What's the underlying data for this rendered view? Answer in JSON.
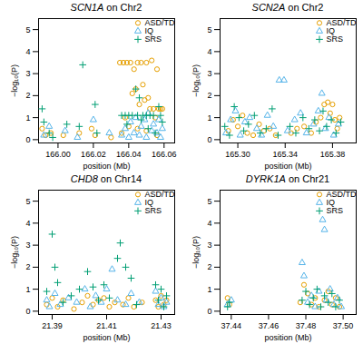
{
  "chart_data": [
    {
      "type": "scatter",
      "title": "SCN1A on Chr2",
      "x_label": "position (Mb)",
      "y_label": "−log₁₀(P)",
      "xlim": [
        165.989,
        166.066
      ],
      "xticks": [
        {
          "value": 166,
          "label": "166.00"
        },
        166.02,
        166.04,
        166.06
      ],
      "ylim": [
        -0.15,
        5.5
      ],
      "yticks": [
        0,
        1,
        2,
        3,
        4,
        5
      ],
      "legend": "top-right",
      "series": [
        {
          "name": "ASD/TD",
          "color": "#E69F00",
          "marker": "circle",
          "x": [
            165.991,
            165.993,
            165.996,
            166.003,
            166.012,
            166.019,
            166.021,
            166.03,
            166.035,
            166.037,
            166.039,
            166.041,
            166.043,
            166.045,
            166.047,
            166.05,
            166.053,
            166.056,
            166.038,
            166.04,
            166.042,
            166.044,
            166.046,
            166.048,
            166.049,
            166.051,
            166.052,
            166.054,
            166.055,
            166.057,
            166.058,
            166.059,
            166.036,
            166.045,
            166.05,
            166.056
          ],
          "values": [
            0.5,
            0.2,
            0.3,
            0.2,
            0.3,
            0.5,
            0.2,
            0.1,
            3.5,
            3.5,
            3.5,
            3.5,
            3.2,
            3.5,
            3.5,
            3.5,
            3.6,
            3.2,
            1.0,
            0.6,
            2.1,
            2.3,
            1.6,
            2.5,
            1.8,
            1.9,
            1.4,
            1.4,
            1.0,
            1.4,
            1.4,
            1.4,
            0.3,
            0.5,
            0.4,
            0.2
          ]
        },
        {
          "name": "IQ",
          "color": "#56B4E9",
          "marker": "triangle",
          "x": [
            165.992,
            165.995,
            166.004,
            166.011,
            166.02,
            166.029,
            166.036,
            166.038,
            166.04,
            166.041,
            166.043,
            166.044,
            166.046,
            166.047,
            166.049,
            166.05,
            166.051,
            166.053,
            166.054,
            166.056,
            166.057,
            166.058,
            166.059
          ],
          "values": [
            0.2,
            0.6,
            0.4,
            0.1,
            0.9,
            0.3,
            0.2,
            0.5,
            0.1,
            0.8,
            0.3,
            1.0,
            0.2,
            0.6,
            0.9,
            0.1,
            1.2,
            0.4,
            0.7,
            0.3,
            0.9,
            0.1,
            0.5
          ]
        },
        {
          "name": "SRS",
          "color": "#009E73",
          "marker": "plus",
          "x": [
            165.991,
            165.992,
            165.995,
            165.997,
            166.005,
            166.014,
            166.012,
            166.021,
            166.022,
            166.036,
            166.038,
            166.039,
            166.04,
            166.042,
            166.044,
            166.045,
            166.046,
            166.047,
            166.048,
            166.05,
            166.051,
            166.052,
            166.054,
            166.055,
            166.057,
            166.058,
            166.059
          ],
          "values": [
            1.4,
            0.8,
            0.3,
            0.1,
            0.7,
            3.4,
            0.6,
            1.6,
            0.3,
            1.1,
            1.1,
            0.7,
            1.1,
            1.1,
            2.3,
            1.1,
            1.9,
            0.9,
            1.1,
            1.1,
            0.5,
            1.1,
            1.1,
            0.3,
            1.5,
            1.1,
            0.8
          ]
        }
      ]
    },
    {
      "type": "scatter",
      "title": "SCN2A on Chr2",
      "x_label": "position (Mb)",
      "y_label": "−log₁₀(P)",
      "xlim": [
        165.285,
        165.4
      ],
      "xticks": [
        {
          "value": 165.3,
          "label": "165.30"
        },
        165.34,
        165.38
      ],
      "ylim": [
        -0.15,
        5.5
      ],
      "yticks": [
        0,
        1,
        2,
        3,
        4,
        5
      ],
      "legend": "top-right",
      "series": [
        {
          "name": "ASD/TD",
          "color": "#E69F00",
          "marker": "circle",
          "x": [
            165.292,
            165.296,
            165.3,
            165.304,
            165.308,
            165.313,
            165.318,
            165.322,
            165.327,
            165.332,
            165.345,
            165.35,
            165.356,
            165.362,
            165.366,
            165.37,
            165.373,
            165.376,
            165.378,
            165.38,
            165.382,
            165.384,
            165.386
          ],
          "values": [
            0.4,
            0.9,
            0.6,
            1.1,
            0.3,
            0.2,
            0.7,
            0.4,
            0.5,
            0.2,
            0.3,
            0.5,
            0.6,
            0.3,
            0.8,
            1.0,
            1.6,
            1.7,
            1.2,
            1.6,
            0.9,
            0.5,
            1.0
          ]
        },
        {
          "name": "IQ",
          "color": "#56B4E9",
          "marker": "triangle",
          "x": [
            165.29,
            165.294,
            165.298,
            165.302,
            165.306,
            165.31,
            165.316,
            165.32,
            165.325,
            165.33,
            165.335,
            165.339,
            165.342,
            165.348,
            165.353,
            165.358,
            165.364,
            165.368,
            165.371,
            165.374,
            165.377,
            165.381,
            165.385
          ],
          "values": [
            0.3,
            0.9,
            1.3,
            0.2,
            0.8,
            1.0,
            0.5,
            0.2,
            1.1,
            0.6,
            2.7,
            2.7,
            0.4,
            0.9,
            1.2,
            0.3,
            0.7,
            1.3,
            2.1,
            0.5,
            1.0,
            0.2,
            0.7
          ]
        },
        {
          "name": "SRS",
          "color": "#009E73",
          "marker": "plus",
          "x": [
            165.289,
            165.293,
            165.297,
            165.301,
            165.305,
            165.309,
            165.314,
            165.319,
            165.324,
            165.329,
            165.334,
            165.344,
            165.349,
            165.355,
            165.36,
            165.365,
            165.369,
            165.372,
            165.375,
            165.379,
            165.383,
            165.387
          ],
          "values": [
            0.6,
            0.2,
            1.5,
            1.0,
            0.4,
            0.7,
            1.1,
            0.3,
            0.5,
            1.4,
            0.2,
            0.6,
            0.3,
            1.0,
            0.5,
            0.9,
            0.4,
            1.3,
            0.6,
            0.9,
            0.3,
            0.8
          ]
        }
      ]
    },
    {
      "type": "scatter",
      "title": "CHD8 on Chr14",
      "x_label": "position (Mb)",
      "y_label": "−log₁₀(P)",
      "xlim": [
        21.385,
        21.435
      ],
      "xticks": [
        21.39,
        21.41,
        21.43
      ],
      "ylim": [
        -0.15,
        5.5
      ],
      "yticks": [
        0,
        1,
        2,
        3,
        4,
        5
      ],
      "legend": "top-right",
      "series": [
        {
          "name": "ASD/TD",
          "color": "#E69F00",
          "marker": "circle",
          "x": [
            21.388,
            21.39,
            21.392,
            21.394,
            21.398,
            21.401,
            21.403,
            21.405,
            21.407,
            21.409,
            21.411,
            21.413,
            21.416,
            21.418,
            21.42,
            21.423,
            21.428,
            21.429,
            21.43,
            21.431,
            21.432
          ],
          "values": [
            0.3,
            0.6,
            0.2,
            0.5,
            0.1,
            0.4,
            0.7,
            0.3,
            0.5,
            0.6,
            0.2,
            0.4,
            0.3,
            0.6,
            0.2,
            0.4,
            0.5,
            0.2,
            0.7,
            0.3,
            0.5
          ]
        },
        {
          "name": "IQ",
          "color": "#56B4E9",
          "marker": "triangle",
          "x": [
            21.388,
            21.389,
            21.391,
            21.393,
            21.396,
            21.399,
            21.402,
            21.404,
            21.406,
            21.408,
            21.41,
            21.412,
            21.414,
            21.417,
            21.419,
            21.422,
            21.428,
            21.429,
            21.43,
            21.431,
            21.432
          ],
          "values": [
            0.5,
            0.2,
            0.8,
            0.3,
            0.6,
            0.4,
            1.0,
            0.2,
            0.7,
            0.4,
            1.0,
            1.9,
            0.5,
            0.3,
            0.8,
            0.4,
            0.9,
            0.3,
            0.6,
            0.2,
            0.4
          ]
        },
        {
          "name": "SRS",
          "color": "#009E73",
          "marker": "plus",
          "x": [
            21.388,
            21.39,
            21.391,
            21.392,
            21.394,
            21.397,
            21.4,
            21.403,
            21.405,
            21.407,
            21.409,
            21.411,
            21.414,
            21.415,
            21.417,
            21.419,
            21.421,
            21.428,
            21.429,
            21.43,
            21.431,
            21.432
          ],
          "values": [
            0.9,
            3.5,
            2.0,
            1.3,
            0.4,
            0.7,
            1.0,
            1.8,
            1.1,
            0.5,
            1.2,
            0.6,
            2.4,
            3.1,
            2.0,
            1.5,
            0.3,
            1.2,
            0.5,
            1.0,
            0.2,
            0.7
          ]
        }
      ]
    },
    {
      "type": "scatter",
      "title": "DYRK1A on Chr21",
      "x_label": "position (Mb)",
      "y_label": "−log₁₀(P)",
      "xlim": [
        37.434,
        37.507
      ],
      "xticks": [
        37.44,
        37.46,
        37.48,
        {
          "value": 37.5,
          "label": "37.50"
        }
      ],
      "ylim": [
        -0.15,
        5.5
      ],
      "yticks": [
        0,
        1,
        2,
        3,
        4,
        5
      ],
      "legend": "top-right",
      "series": [
        {
          "name": "ASD/TD",
          "color": "#E69F00",
          "marker": "circle",
          "x": [
            37.438,
            37.439,
            37.477,
            37.479,
            37.481,
            37.483,
            37.485,
            37.487,
            37.49,
            37.492,
            37.494,
            37.496,
            37.498
          ],
          "values": [
            0.6,
            0.3,
            0.4,
            1.2,
            0.8,
            0.3,
            0.6,
            0.2,
            0.5,
            0.9,
            0.3,
            0.6,
            0.2
          ]
        },
        {
          "name": "IQ",
          "color": "#56B4E9",
          "marker": "triangle",
          "x": [
            37.438,
            37.44,
            37.478,
            37.479,
            37.481,
            37.483,
            37.485,
            37.487,
            37.489,
            37.49,
            37.491,
            37.493,
            37.495,
            37.497,
            37.499
          ],
          "values": [
            0.3,
            0.5,
            2.2,
            1.6,
            0.4,
            0.7,
            0.2,
            0.9,
            4.15,
            3.7,
            0.5,
            1.0,
            0.3,
            0.6,
            0.2
          ]
        },
        {
          "name": "SRS",
          "color": "#009E73",
          "marker": "plus",
          "x": [
            37.438,
            37.439,
            37.478,
            37.48,
            37.482,
            37.484,
            37.486,
            37.488,
            37.49,
            37.492,
            37.494,
            37.496,
            37.498
          ],
          "values": [
            0.2,
            0.4,
            0.5,
            0.9,
            0.3,
            0.6,
            1.0,
            0.2,
            0.7,
            0.4,
            0.8,
            0.2,
            0.5
          ]
        }
      ]
    }
  ]
}
